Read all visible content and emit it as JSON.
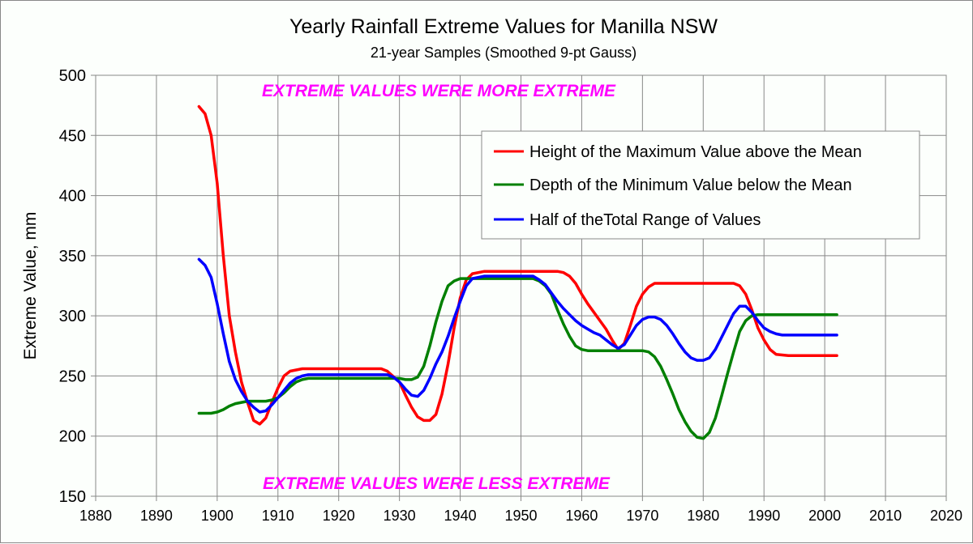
{
  "chart_data": {
    "type": "line",
    "title": "Yearly Rainfall Extreme Values for Manilla NSW",
    "subtitle": "21-year Samples (Smoothed 9-pt Gauss)",
    "xlabel": "",
    "ylabel": "Extreme Value, mm",
    "xlim": [
      1880,
      2020
    ],
    "ylim": [
      150,
      500
    ],
    "xticks": [
      1880,
      1890,
      1900,
      1910,
      1920,
      1930,
      1940,
      1950,
      1960,
      1970,
      1980,
      1990,
      2000,
      2010,
      2020
    ],
    "yticks": [
      150,
      200,
      250,
      300,
      350,
      400,
      450,
      500
    ],
    "grid": true,
    "legend_position": "top-right",
    "annotations": [
      "EXTREME VALUES WERE MORE EXTREME",
      "EXTREME VALUES WERE LESS EXTREME"
    ],
    "annotation_color": "#ff00ff",
    "series": [
      {
        "name": "Height of the Maximum Value above the Mean",
        "color": "#ff0000",
        "x": [
          1897,
          1898,
          1899,
          1900,
          1901,
          1902,
          1903,
          1904,
          1905,
          1906,
          1907,
          1908,
          1909,
          1910,
          1911,
          1912,
          1914,
          1920,
          1927,
          1928,
          1930,
          1931,
          1932,
          1933,
          1934,
          1935,
          1936,
          1937,
          1938,
          1939,
          1940,
          1941,
          1942,
          1944,
          1950,
          1956,
          1957,
          1958,
          1959,
          1960,
          1961,
          1962,
          1963,
          1964,
          1965,
          1966,
          1967,
          1968,
          1969,
          1970,
          1971,
          1972,
          1975,
          1980,
          1985,
          1986,
          1987,
          1988,
          1989,
          1990,
          1991,
          1992,
          1994,
          2002
        ],
        "y": [
          474,
          468,
          450,
          410,
          350,
          300,
          270,
          245,
          228,
          213,
          210,
          215,
          228,
          240,
          250,
          254,
          256,
          256,
          256,
          254,
          245,
          234,
          224,
          216,
          213,
          213,
          218,
          235,
          260,
          290,
          315,
          330,
          335,
          337,
          337,
          337,
          336,
          333,
          327,
          318,
          310,
          303,
          296,
          289,
          280,
          272,
          277,
          292,
          308,
          318,
          324,
          327,
          327,
          327,
          327,
          325,
          318,
          305,
          290,
          280,
          272,
          268,
          267,
          267
        ]
      },
      {
        "name": "Depth of the Minimum Value below the Mean",
        "color": "#008000",
        "x": [
          1897,
          1898,
          1899,
          1900,
          1901,
          1902,
          1903,
          1904,
          1905,
          1908,
          1909,
          1910,
          1911,
          1912,
          1913,
          1914,
          1915,
          1930,
          1931,
          1932,
          1933,
          1934,
          1935,
          1936,
          1937,
          1938,
          1939,
          1940,
          1945,
          1952,
          1953,
          1954,
          1955,
          1956,
          1957,
          1958,
          1959,
          1960,
          1961,
          1966,
          1970,
          1971,
          1972,
          1973,
          1974,
          1975,
          1976,
          1977,
          1978,
          1979,
          1980,
          1981,
          1982,
          1983,
          1984,
          1985,
          1986,
          1987,
          1988,
          1989,
          2002
        ],
        "y": [
          219,
          219,
          219,
          220,
          222,
          225,
          227,
          228,
          229,
          229,
          230,
          232,
          236,
          241,
          245,
          247,
          248,
          248,
          247,
          247,
          249,
          258,
          275,
          295,
          312,
          325,
          329,
          331,
          331,
          331,
          329,
          325,
          318,
          305,
          293,
          283,
          275,
          272,
          271,
          271,
          271,
          270,
          266,
          258,
          247,
          235,
          222,
          212,
          204,
          199,
          198,
          203,
          215,
          233,
          252,
          270,
          287,
          296,
          300,
          301,
          301
        ]
      },
      {
        "name": "Half of theTotal Range of Values",
        "color": "#0000ff",
        "x": [
          1897,
          1898,
          1899,
          1900,
          1901,
          1902,
          1903,
          1904,
          1905,
          1906,
          1907,
          1908,
          1909,
          1910,
          1911,
          1912,
          1913,
          1914,
          1915,
          1928,
          1929,
          1930,
          1931,
          1932,
          1933,
          1934,
          1935,
          1936,
          1937,
          1938,
          1939,
          1940,
          1941,
          1942,
          1944,
          1952,
          1953,
          1954,
          1955,
          1956,
          1957,
          1958,
          1959,
          1960,
          1961,
          1962,
          1963,
          1964,
          1965,
          1966,
          1967,
          1968,
          1969,
          1970,
          1971,
          1972,
          1973,
          1974,
          1975,
          1976,
          1977,
          1978,
          1979,
          1980,
          1981,
          1982,
          1983,
          1984,
          1985,
          1986,
          1987,
          1988,
          1989,
          1990,
          1991,
          1992,
          1993,
          2002
        ],
        "y": [
          347,
          342,
          332,
          310,
          285,
          262,
          247,
          237,
          229,
          224,
          220,
          221,
          226,
          232,
          238,
          244,
          248,
          250,
          251,
          251,
          249,
          245,
          239,
          234,
          233,
          238,
          248,
          260,
          270,
          283,
          298,
          312,
          325,
          331,
          333,
          333,
          330,
          326,
          319,
          312,
          306,
          301,
          296,
          292,
          289,
          286,
          284,
          280,
          276,
          273,
          276,
          284,
          292,
          297,
          299,
          299,
          297,
          292,
          285,
          277,
          270,
          265,
          263,
          263,
          265,
          272,
          282,
          292,
          302,
          308,
          308,
          303,
          296,
          290,
          287,
          285,
          284,
          284
        ]
      }
    ]
  }
}
